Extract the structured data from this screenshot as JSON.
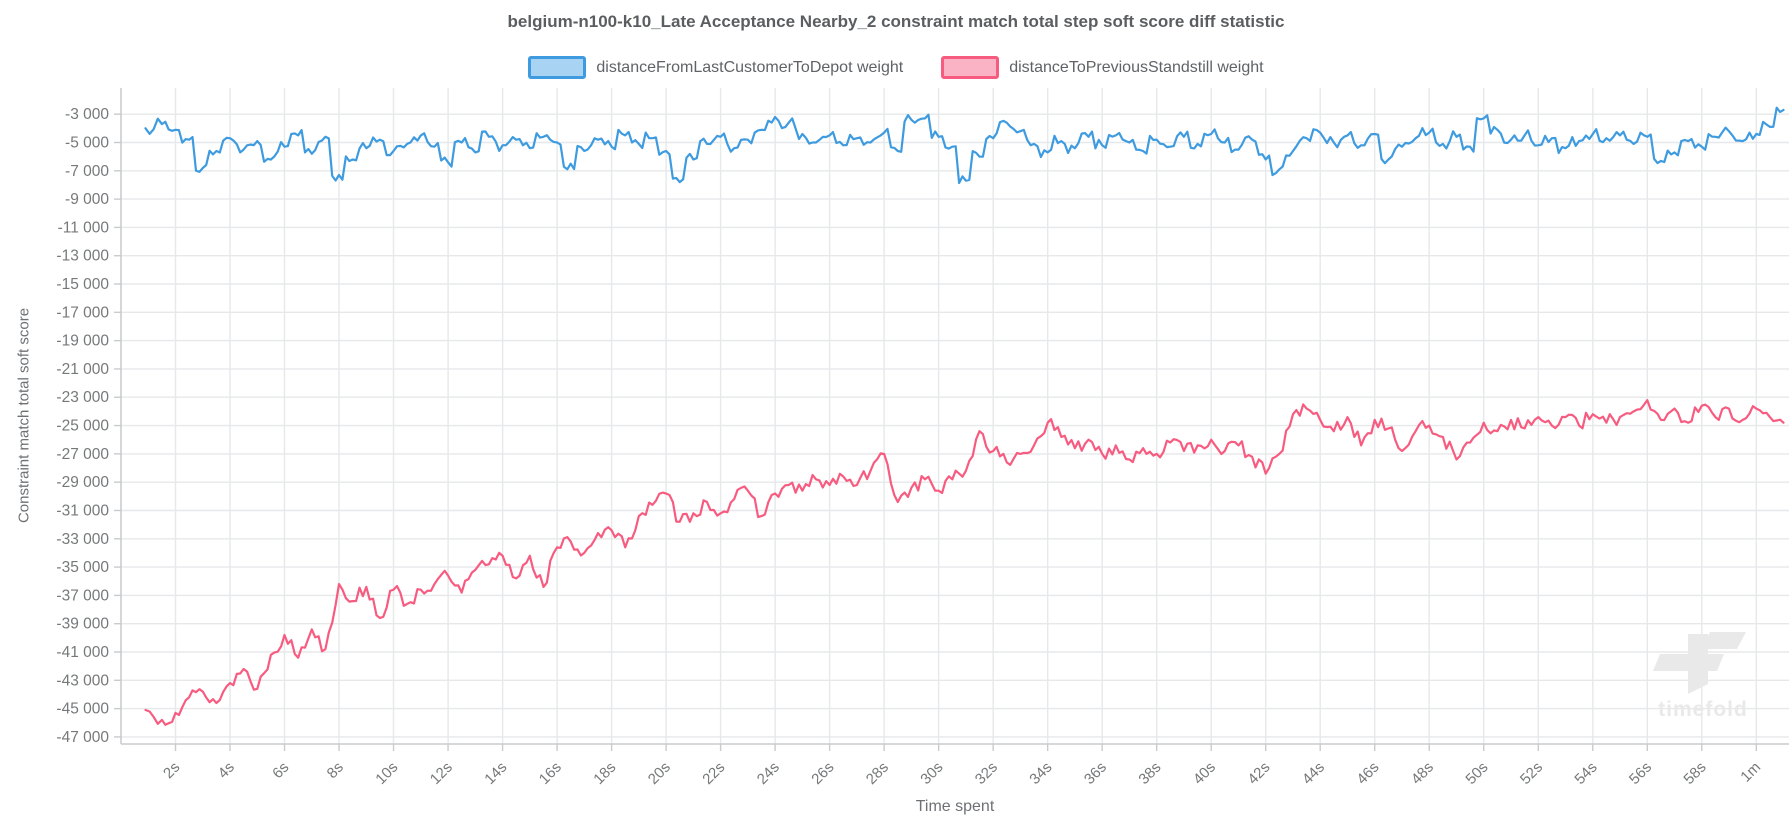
{
  "watermark": {
    "text": "timefold"
  },
  "chart_data": {
    "type": "line",
    "title": "belgium-n100-k10_Late Acceptance Nearby_2 constraint match total step soft score diff statistic",
    "xlabel": "Time spent",
    "ylabel": "Constraint match total soft score",
    "legend_position": "top-center",
    "grid": true,
    "colors": {
      "grid": "#e6e8ea",
      "axis": "#c9cbcd",
      "tick_text": "#76787a",
      "watermark": "#e9e9e9"
    },
    "axes": {
      "x_range": [
        0,
        61.2
      ],
      "y_range": [
        -47500,
        -1150
      ],
      "x_unit": "time",
      "y_unit": "soft score"
    },
    "x_ticks": [
      [
        2,
        "2s"
      ],
      [
        4,
        "4s"
      ],
      [
        6,
        "6s"
      ],
      [
        8,
        "8s"
      ],
      [
        10,
        "10s"
      ],
      [
        12,
        "12s"
      ],
      [
        14,
        "14s"
      ],
      [
        16,
        "16s"
      ],
      [
        18,
        "18s"
      ],
      [
        20,
        "20s"
      ],
      [
        22,
        "22s"
      ],
      [
        24,
        "24s"
      ],
      [
        26,
        "26s"
      ],
      [
        28,
        "28s"
      ],
      [
        30,
        "30s"
      ],
      [
        32,
        "32s"
      ],
      [
        34,
        "34s"
      ],
      [
        36,
        "36s"
      ],
      [
        38,
        "38s"
      ],
      [
        40,
        "40s"
      ],
      [
        42,
        "42s"
      ],
      [
        44,
        "44s"
      ],
      [
        46,
        "46s"
      ],
      [
        48,
        "48s"
      ],
      [
        50,
        "50s"
      ],
      [
        52,
        "52s"
      ],
      [
        54,
        "54s"
      ],
      [
        56,
        "56s"
      ],
      [
        58,
        "58s"
      ],
      [
        60,
        "1m"
      ]
    ],
    "y_ticks": [
      [
        -3000,
        "-3 000"
      ],
      [
        -5000,
        "-5 000"
      ],
      [
        -7000,
        "-7 000"
      ],
      [
        -9000,
        "-9 000"
      ],
      [
        -11000,
        "-11 000"
      ],
      [
        -13000,
        "-13 000"
      ],
      [
        -15000,
        "-15 000"
      ],
      [
        -17000,
        "-17 000"
      ],
      [
        -19000,
        "-19 000"
      ],
      [
        -21000,
        "-21 000"
      ],
      [
        -23000,
        "-23 000"
      ],
      [
        -25000,
        "-25 000"
      ],
      [
        -27000,
        "-27 000"
      ],
      [
        -29000,
        "-29 000"
      ],
      [
        -31000,
        "-31 000"
      ],
      [
        -33000,
        "-33 000"
      ],
      [
        -35000,
        "-35 000"
      ],
      [
        -37000,
        "-37 000"
      ],
      [
        -39000,
        "-39 000"
      ],
      [
        -41000,
        "-41 000"
      ],
      [
        -43000,
        "-43 000"
      ],
      [
        -45000,
        "-45 000"
      ],
      [
        -47000,
        "-47 000"
      ]
    ],
    "legend": [
      {
        "label": "distanceFromLastCustomerToDepot weight",
        "line_color": "#3e9bdf",
        "fill_color": "#a8d3f2"
      },
      {
        "label": "distanceToPreviousStandstill weight",
        "line_color": "#f75c80",
        "fill_color": "#f9b3c4"
      }
    ],
    "series": [
      {
        "name": "distanceFromLastCustomerToDepot-weight",
        "color": "#3e9bdf",
        "step": true,
        "noise": 400,
        "seed": 7,
        "points": [
          [
            0.9,
            -4000
          ],
          [
            1.5,
            -3700
          ],
          [
            2,
            -4100
          ],
          [
            2.5,
            -4800
          ],
          [
            3,
            -6800
          ],
          [
            3.5,
            -5600
          ],
          [
            4,
            -4700
          ],
          [
            4.5,
            -5500
          ],
          [
            5,
            -4900
          ],
          [
            5.5,
            -6200
          ],
          [
            6,
            -5300
          ],
          [
            6.5,
            -4500
          ],
          [
            7,
            -5800
          ],
          [
            7.5,
            -4600
          ],
          [
            8,
            -7300
          ],
          [
            8.5,
            -6200
          ],
          [
            9,
            -5400
          ],
          [
            9.5,
            -4800
          ],
          [
            10,
            -5600
          ],
          [
            10.5,
            -5100
          ],
          [
            11,
            -4500
          ],
          [
            11.5,
            -5300
          ],
          [
            12,
            -6400
          ],
          [
            12.5,
            -5000
          ],
          [
            13,
            -5700
          ],
          [
            13.5,
            -4600
          ],
          [
            14,
            -5200
          ],
          [
            14.5,
            -4800
          ],
          [
            15,
            -5400
          ],
          [
            15.5,
            -4600
          ],
          [
            16,
            -5000
          ],
          [
            16.5,
            -6500
          ],
          [
            17,
            -5600
          ],
          [
            17.5,
            -4800
          ],
          [
            18,
            -5300
          ],
          [
            18.5,
            -4500
          ],
          [
            19,
            -5100
          ],
          [
            19.5,
            -4700
          ],
          [
            20,
            -5600
          ],
          [
            20.5,
            -7800
          ],
          [
            21,
            -6200
          ],
          [
            21.5,
            -5100
          ],
          [
            22,
            -4600
          ],
          [
            22.5,
            -5400
          ],
          [
            23,
            -4800
          ],
          [
            23.5,
            -4100
          ],
          [
            24,
            -3200
          ],
          [
            24.5,
            -3600
          ],
          [
            25,
            -4400
          ],
          [
            25.5,
            -5000
          ],
          [
            26,
            -4500
          ],
          [
            26.5,
            -5200
          ],
          [
            27,
            -4700
          ],
          [
            27.5,
            -5000
          ],
          [
            28,
            -4300
          ],
          [
            28.5,
            -5600
          ],
          [
            29,
            -3400
          ],
          [
            29.5,
            -3300
          ],
          [
            30,
            -4600
          ],
          [
            30.5,
            -5300
          ],
          [
            31,
            -7700
          ],
          [
            31.5,
            -6000
          ],
          [
            32,
            -4700
          ],
          [
            32.5,
            -3600
          ],
          [
            33,
            -4200
          ],
          [
            33.5,
            -5100
          ],
          [
            34,
            -5700
          ],
          [
            34.5,
            -4900
          ],
          [
            35,
            -5400
          ],
          [
            35.5,
            -4600
          ],
          [
            36,
            -5200
          ],
          [
            36.5,
            -4500
          ],
          [
            37,
            -5000
          ],
          [
            37.5,
            -5600
          ],
          [
            38,
            -4800
          ],
          [
            38.5,
            -5300
          ],
          [
            39,
            -4600
          ],
          [
            39.5,
            -5100
          ],
          [
            40,
            -4400
          ],
          [
            40.5,
            -5000
          ],
          [
            41,
            -5500
          ],
          [
            41.5,
            -4800
          ],
          [
            42,
            -6200
          ],
          [
            42.5,
            -6900
          ],
          [
            43,
            -5600
          ],
          [
            43.5,
            -4700
          ],
          [
            44,
            -4300
          ],
          [
            44.5,
            -5000
          ],
          [
            45,
            -4500
          ],
          [
            45.5,
            -5200
          ],
          [
            46,
            -4400
          ],
          [
            46.5,
            -6200
          ],
          [
            47,
            -5300
          ],
          [
            47.5,
            -4700
          ],
          [
            48,
            -4300
          ],
          [
            48.5,
            -5100
          ],
          [
            49,
            -4600
          ],
          [
            49.5,
            -5300
          ],
          [
            50,
            -3300
          ],
          [
            50.5,
            -4100
          ],
          [
            51,
            -4800
          ],
          [
            51.5,
            -4500
          ],
          [
            52,
            -5200
          ],
          [
            52.5,
            -4700
          ],
          [
            53,
            -5400
          ],
          [
            53.5,
            -4900
          ],
          [
            54,
            -4400
          ],
          [
            54.5,
            -4700
          ],
          [
            55,
            -4500
          ],
          [
            55.5,
            -5100
          ],
          [
            56,
            -4600
          ],
          [
            56.5,
            -6300
          ],
          [
            57,
            -5700
          ],
          [
            57.5,
            -4900
          ],
          [
            58,
            -5300
          ],
          [
            58.5,
            -4600
          ],
          [
            59,
            -4200
          ],
          [
            59.5,
            -4900
          ],
          [
            60,
            -4400
          ],
          [
            60.5,
            -3900
          ],
          [
            61,
            -2700
          ]
        ]
      },
      {
        "name": "distanceToPreviousStandstill-weight",
        "color": "#f75c80",
        "step": false,
        "noise": 520,
        "seed": 13,
        "points": [
          [
            0.9,
            -45100
          ],
          [
            1.5,
            -45800
          ],
          [
            2,
            -45300
          ],
          [
            2.5,
            -44200
          ],
          [
            3,
            -43800
          ],
          [
            3.5,
            -44600
          ],
          [
            4,
            -43200
          ],
          [
            4.5,
            -42200
          ],
          [
            5,
            -43600
          ],
          [
            5.5,
            -41200
          ],
          [
            6,
            -39800
          ],
          [
            6.5,
            -41400
          ],
          [
            7,
            -39400
          ],
          [
            7.5,
            -40800
          ],
          [
            8,
            -36200
          ],
          [
            8.5,
            -37400
          ],
          [
            9,
            -36400
          ],
          [
            9.5,
            -38600
          ],
          [
            10,
            -36600
          ],
          [
            10.5,
            -37600
          ],
          [
            11,
            -36600
          ],
          [
            11.5,
            -36200
          ],
          [
            12,
            -35600
          ],
          [
            12.5,
            -36800
          ],
          [
            13,
            -35200
          ],
          [
            13.5,
            -34800
          ],
          [
            14,
            -34200
          ],
          [
            14.5,
            -35800
          ],
          [
            15,
            -34200
          ],
          [
            15.5,
            -36400
          ],
          [
            16,
            -33600
          ],
          [
            16.5,
            -33200
          ],
          [
            17,
            -34000
          ],
          [
            17.5,
            -32600
          ],
          [
            18,
            -32400
          ],
          [
            18.5,
            -33600
          ],
          [
            19,
            -31400
          ],
          [
            19.5,
            -30600
          ],
          [
            20,
            -29800
          ],
          [
            20.5,
            -31800
          ],
          [
            21,
            -31200
          ],
          [
            21.5,
            -30400
          ],
          [
            22,
            -31200
          ],
          [
            22.5,
            -30200
          ],
          [
            23,
            -29600
          ],
          [
            23.5,
            -31400
          ],
          [
            24,
            -29800
          ],
          [
            24.5,
            -29200
          ],
          [
            25,
            -29600
          ],
          [
            25.5,
            -28800
          ],
          [
            26,
            -29200
          ],
          [
            26.5,
            -28600
          ],
          [
            27,
            -29200
          ],
          [
            27.5,
            -28200
          ],
          [
            28,
            -27000
          ],
          [
            28.5,
            -30400
          ],
          [
            29,
            -29400
          ],
          [
            29.5,
            -28800
          ],
          [
            30,
            -29600
          ],
          [
            30.5,
            -28800
          ],
          [
            31,
            -28200
          ],
          [
            31.5,
            -25400
          ],
          [
            32,
            -26800
          ],
          [
            32.5,
            -27600
          ],
          [
            33,
            -27000
          ],
          [
            33.5,
            -26400
          ],
          [
            34,
            -24800
          ],
          [
            34.5,
            -25800
          ],
          [
            35,
            -26600
          ],
          [
            35.5,
            -26000
          ],
          [
            36,
            -27000
          ],
          [
            36.5,
            -26400
          ],
          [
            37,
            -27400
          ],
          [
            37.5,
            -26600
          ],
          [
            38,
            -27000
          ],
          [
            38.5,
            -26200
          ],
          [
            39,
            -26800
          ],
          [
            39.5,
            -26400
          ],
          [
            40,
            -26000
          ],
          [
            40.5,
            -26800
          ],
          [
            41,
            -26400
          ],
          [
            41.5,
            -27200
          ],
          [
            42,
            -28400
          ],
          [
            42.5,
            -27000
          ],
          [
            43,
            -24200
          ],
          [
            43.5,
            -23800
          ],
          [
            44,
            -24600
          ],
          [
            44.5,
            -25400
          ],
          [
            45,
            -24400
          ],
          [
            45.5,
            -26400
          ],
          [
            46,
            -24600
          ],
          [
            46.5,
            -25200
          ],
          [
            47,
            -26800
          ],
          [
            47.5,
            -25400
          ],
          [
            48,
            -25000
          ],
          [
            48.5,
            -25800
          ],
          [
            49,
            -27400
          ],
          [
            49.5,
            -26200
          ],
          [
            50,
            -24800
          ],
          [
            50.5,
            -25400
          ],
          [
            51,
            -24600
          ],
          [
            51.5,
            -25200
          ],
          [
            52,
            -24400
          ],
          [
            52.5,
            -25000
          ],
          [
            53,
            -24400
          ],
          [
            53.5,
            -25000
          ],
          [
            54,
            -24200
          ],
          [
            54.5,
            -24800
          ],
          [
            55,
            -24400
          ],
          [
            55.5,
            -24000
          ],
          [
            56,
            -23200
          ],
          [
            56.5,
            -24600
          ],
          [
            57,
            -23800
          ],
          [
            57.5,
            -24800
          ],
          [
            58,
            -23600
          ],
          [
            58.5,
            -24400
          ],
          [
            59,
            -23800
          ],
          [
            59.5,
            -24600
          ],
          [
            60,
            -23800
          ],
          [
            60.5,
            -24400
          ],
          [
            61,
            -24800
          ]
        ]
      }
    ]
  }
}
